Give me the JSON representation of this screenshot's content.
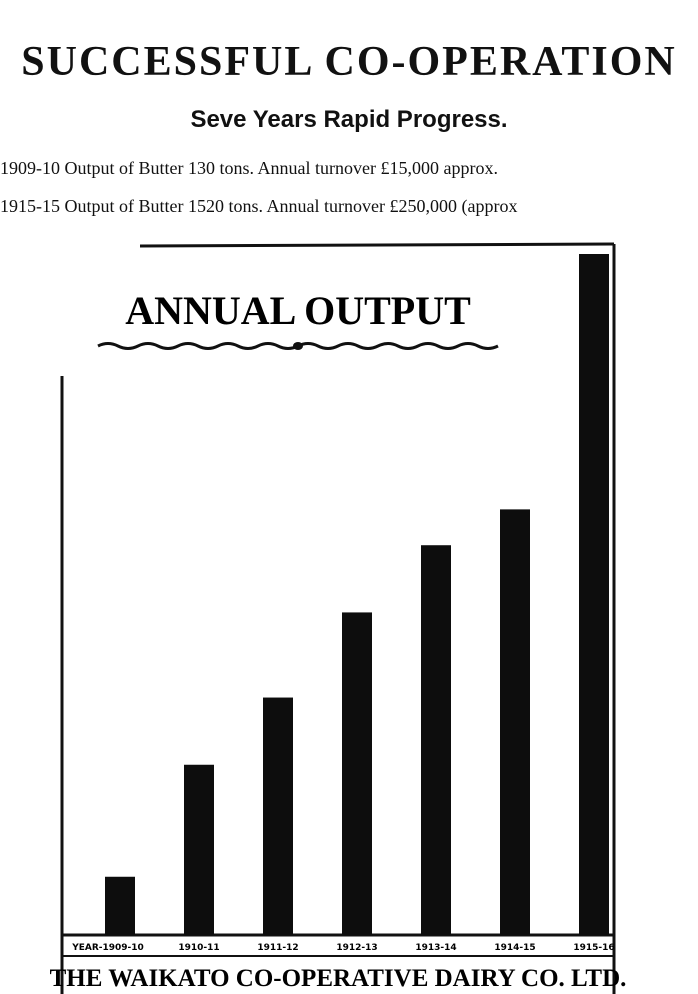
{
  "header": {
    "headline": "SUCCESSFUL CO-OPERATION",
    "subhead": "Seve   Years Rapid Progress.",
    "stat_lines": [
      "1909-10 Output of Butter 130 tons.  Annual turnover £15,000  approx.",
      "1915-15 Output of Butter 1520 tons.  Annual turnover £250,000 (approx"
    ]
  },
  "chart_data": {
    "type": "bar",
    "title": "ANNUAL OUTPUT",
    "x_prefix": "YEAR-",
    "categories": [
      "1909-10",
      "1910-11",
      "1911-12",
      "1912-13",
      "1913-14",
      "1914-15",
      "1915-16"
    ],
    "values": [
      130,
      380,
      530,
      720,
      870,
      950,
      1520
    ],
    "unit": "tons of butter",
    "ylim": [
      0,
      1520
    ],
    "grid": false,
    "legend": "none",
    "bar_color": "#0d0d0d",
    "footer": "THE WAIKATO CO-OPERATIVE DAIRY CO. LTD."
  }
}
